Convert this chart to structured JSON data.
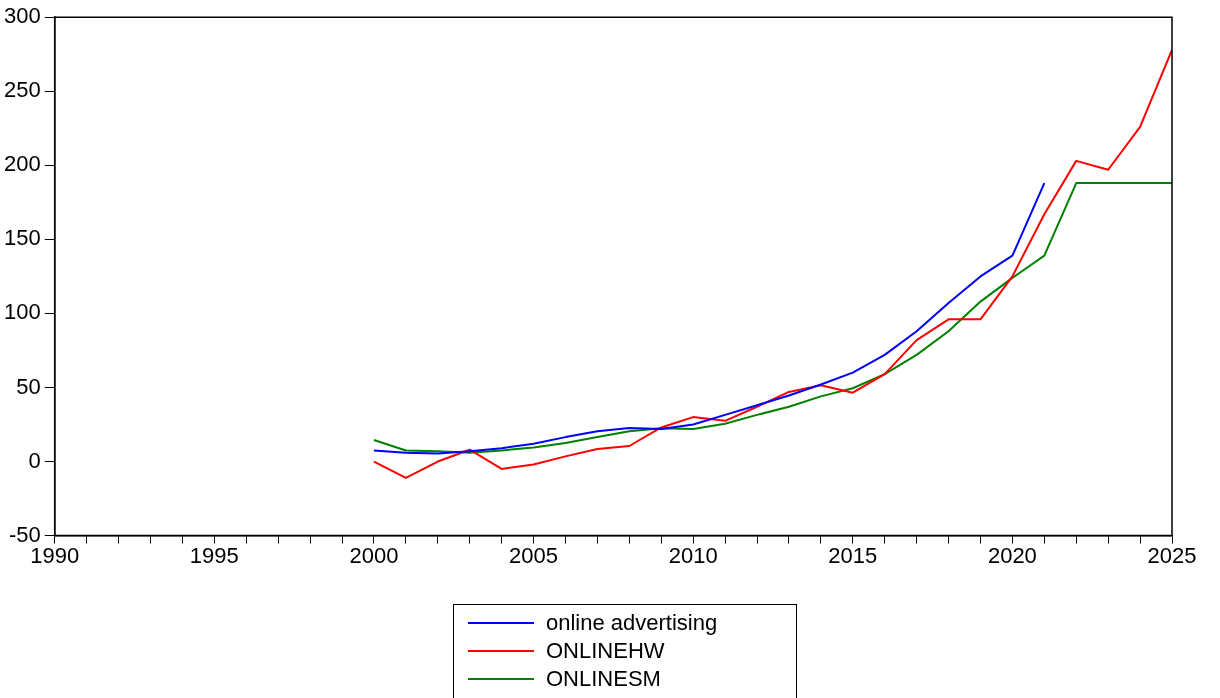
{
  "chart_data": {
    "type": "line",
    "x": [
      2000,
      2001,
      2002,
      2003,
      2004,
      2005,
      2006,
      2007,
      2008,
      2009,
      2010,
      2011,
      2012,
      2013,
      2014,
      2015,
      2016,
      2017,
      2018,
      2019,
      2020,
      2021,
      2022,
      2023,
      2024,
      2025
    ],
    "series": [
      {
        "name": "online advertising",
        "color": "#0000ff",
        "values": [
          7.5,
          6,
          5.5,
          7,
          9,
          12,
          16.5,
          20.5,
          22.6,
          22,
          25,
          31.5,
          38,
          44.6,
          52,
          60,
          72,
          88,
          107,
          125,
          139,
          188,
          null,
          null,
          null,
          null
        ]
      },
      {
        "name": "ONLINEHW",
        "color": "#ff0000",
        "values": [
          0,
          -11,
          0,
          8,
          -5,
          -2,
          3.5,
          8.5,
          10.5,
          23,
          30,
          27.5,
          37,
          47,
          51.5,
          46.5,
          59,
          82,
          96,
          96,
          125,
          167,
          203,
          197,
          226,
          278
        ]
      },
      {
        "name": "ONLINESM",
        "color": "#008000",
        "values": [
          14.5,
          7.5,
          7,
          6,
          7.5,
          9.5,
          12.5,
          16.5,
          20.5,
          22.5,
          22,
          25.5,
          31.5,
          37,
          44,
          49.5,
          59,
          72,
          88,
          108,
          124,
          139,
          188,
          188,
          188,
          188
        ]
      }
    ],
    "xlim": [
      1990,
      2025
    ],
    "xticks": [
      1990,
      {
        "value": 1991,
        "label": null
      },
      {
        "value": 1992,
        "label": null
      },
      {
        "value": 1993,
        "label": null
      },
      {
        "value": 1994,
        "label": null
      },
      1995,
      {
        "value": 1996,
        "label": null
      },
      {
        "value": 1997,
        "label": null
      },
      {
        "value": 1998,
        "label": null
      },
      {
        "value": 1999,
        "label": null
      },
      2000,
      {
        "value": 2001,
        "label": null
      },
      {
        "value": 2002,
        "label": null
      },
      {
        "value": 2003,
        "label": null
      },
      {
        "value": 2004,
        "label": null
      },
      2005,
      {
        "value": 2006,
        "label": null
      },
      {
        "value": 2007,
        "label": null
      },
      {
        "value": 2008,
        "label": null
      },
      {
        "value": 2009,
        "label": null
      },
      2010,
      {
        "value": 2011,
        "label": null
      },
      {
        "value": 2012,
        "label": null
      },
      {
        "value": 2013,
        "label": null
      },
      {
        "value": 2014,
        "label": null
      },
      2015,
      {
        "value": 2016,
        "label": null
      },
      {
        "value": 2017,
        "label": null
      },
      {
        "value": 2018,
        "label": null
      },
      {
        "value": 2019,
        "label": null
      },
      2020,
      {
        "value": 2021,
        "label": null
      },
      {
        "value": 2022,
        "label": null
      },
      {
        "value": 2023,
        "label": null
      },
      {
        "value": 2024,
        "label": null
      },
      2025
    ],
    "ylim": [
      -50,
      300
    ],
    "yticks": [
      -50,
      0,
      50,
      100,
      150,
      200,
      250,
      300
    ],
    "grid": false,
    "legend": "bottom",
    "marker": "none",
    "line_style": "solid"
  }
}
